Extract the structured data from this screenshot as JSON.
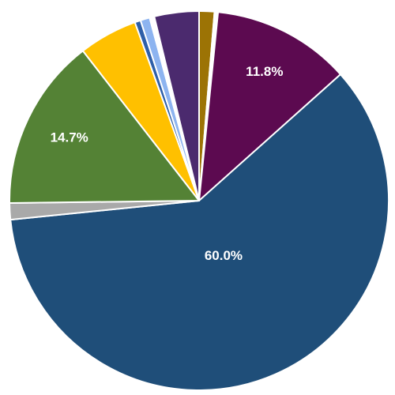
{
  "chart_data": {
    "type": "pie",
    "values": [
      1.3,
      0.3,
      11.8,
      60.0,
      1.4,
      14.7,
      5.0,
      0.5,
      0.8,
      0.4,
      3.8
    ],
    "value_labels": [
      null,
      null,
      "11.8%",
      "60.0%",
      null,
      "14.7%",
      null,
      null,
      null,
      null,
      null
    ],
    "colors": [
      "#9c7305",
      "#ffffff",
      "#5c0a50",
      "#1f4e79",
      "#a9a9a9",
      "#548235",
      "#ffc000",
      "#2e5fa8",
      "#8db4f0",
      "#ffffff",
      "#4b2a6e"
    ]
  }
}
